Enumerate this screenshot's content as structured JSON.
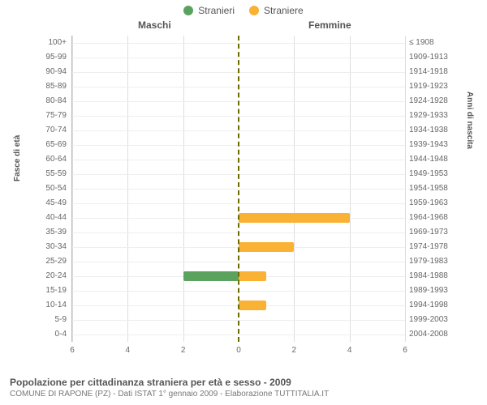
{
  "legend": {
    "male": "Stranieri",
    "female": "Straniere"
  },
  "columns": {
    "male": "Maschi",
    "female": "Femmine"
  },
  "axes": {
    "left_title": "Fasce di età",
    "right_title": "Anni di nascita"
  },
  "colors": {
    "male": "#5ca25f",
    "female": "#f9b233",
    "grid": "#dddddd",
    "center": "#6b6b00"
  },
  "x": {
    "max": 6,
    "ticks": [
      6,
      4,
      2,
      0,
      2,
      4,
      6
    ]
  },
  "rows": [
    {
      "age": "100+",
      "birth": "≤ 1908",
      "m": 0,
      "f": 0
    },
    {
      "age": "95-99",
      "birth": "1909-1913",
      "m": 0,
      "f": 0
    },
    {
      "age": "90-94",
      "birth": "1914-1918",
      "m": 0,
      "f": 0
    },
    {
      "age": "85-89",
      "birth": "1919-1923",
      "m": 0,
      "f": 0
    },
    {
      "age": "80-84",
      "birth": "1924-1928",
      "m": 0,
      "f": 0
    },
    {
      "age": "75-79",
      "birth": "1929-1933",
      "m": 0,
      "f": 0
    },
    {
      "age": "70-74",
      "birth": "1934-1938",
      "m": 0,
      "f": 0
    },
    {
      "age": "65-69",
      "birth": "1939-1943",
      "m": 0,
      "f": 0
    },
    {
      "age": "60-64",
      "birth": "1944-1948",
      "m": 0,
      "f": 0
    },
    {
      "age": "55-59",
      "birth": "1949-1953",
      "m": 0,
      "f": 0
    },
    {
      "age": "50-54",
      "birth": "1954-1958",
      "m": 0,
      "f": 0
    },
    {
      "age": "45-49",
      "birth": "1959-1963",
      "m": 0,
      "f": 0
    },
    {
      "age": "40-44",
      "birth": "1964-1968",
      "m": 0,
      "f": 4
    },
    {
      "age": "35-39",
      "birth": "1969-1973",
      "m": 0,
      "f": 0
    },
    {
      "age": "30-34",
      "birth": "1974-1978",
      "m": 0,
      "f": 2
    },
    {
      "age": "25-29",
      "birth": "1979-1983",
      "m": 0,
      "f": 0
    },
    {
      "age": "20-24",
      "birth": "1984-1988",
      "m": 2,
      "f": 1
    },
    {
      "age": "15-19",
      "birth": "1989-1993",
      "m": 0,
      "f": 0
    },
    {
      "age": "10-14",
      "birth": "1994-1998",
      "m": 0,
      "f": 1
    },
    {
      "age": "5-9",
      "birth": "1999-2003",
      "m": 0,
      "f": 0
    },
    {
      "age": "0-4",
      "birth": "2004-2008",
      "m": 0,
      "f": 0
    }
  ],
  "caption": {
    "title": "Popolazione per cittadinanza straniera per età e sesso - 2009",
    "sub": "COMUNE DI RAPONE (PZ) - Dati ISTAT 1° gennaio 2009 - Elaborazione TUTTITALIA.IT"
  }
}
